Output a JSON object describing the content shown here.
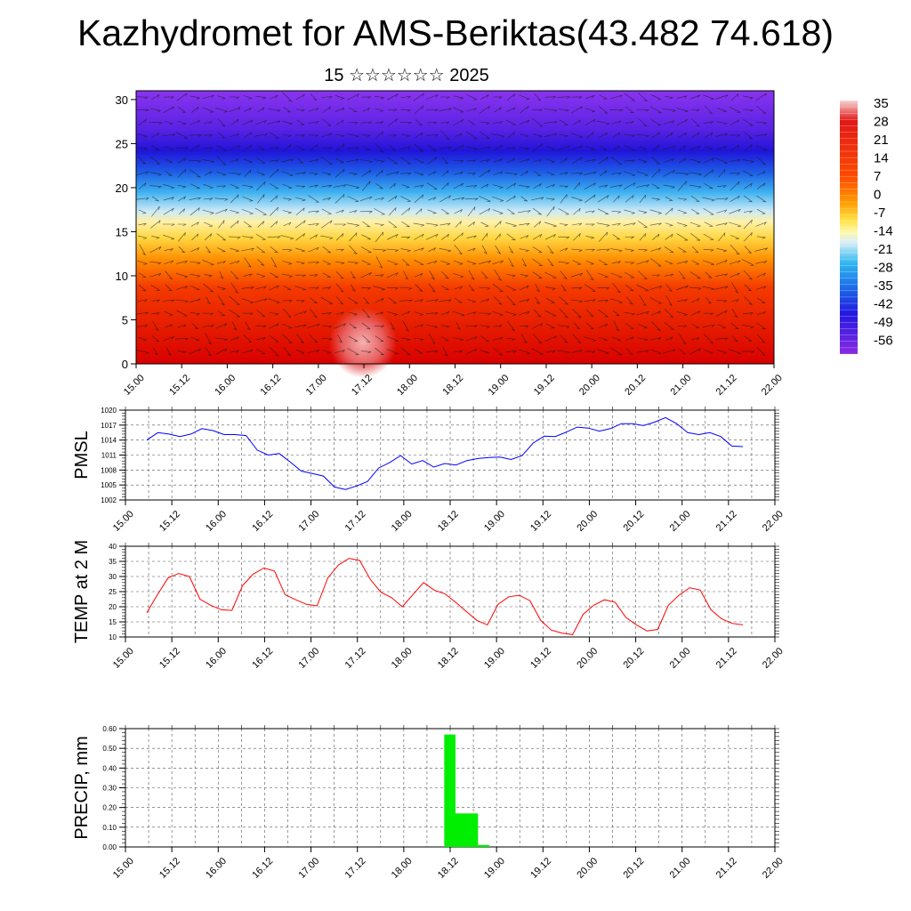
{
  "title": "Kazhydromet for AMS-Beriktas(43.482 74.618)",
  "subtitle": "15 ☆☆☆☆☆☆ 2025",
  "chart_data": [
    {
      "type": "heatmap",
      "xlabel": "",
      "ylabel": "",
      "x_ticks": [
        "15.00",
        "15.12",
        "16.00",
        "16.12",
        "17.00",
        "17.12",
        "18.00",
        "18.12",
        "19.00",
        "19.12",
        "20.00",
        "20.12",
        "21.00",
        "21.12",
        "22.00"
      ],
      "y_ticks": [
        "0",
        "5",
        "10",
        "15",
        "20",
        "25",
        "30"
      ],
      "ylim": [
        0,
        31
      ],
      "colorbar_labels": [
        "35",
        "28",
        "21",
        "14",
        "7",
        "0",
        "-7",
        "-14",
        "-21",
        "-28",
        "-35",
        "-42",
        "-49",
        "-56"
      ],
      "overlay": "wind vectors"
    },
    {
      "type": "line",
      "ylabel": "PMSL",
      "ylim": [
        1002,
        1020
      ],
      "y_ticks": [
        "1020",
        "1017",
        "1014",
        "1011",
        "1008",
        "1005",
        "1002"
      ],
      "x_ticks": [
        "15.00",
        "15.12",
        "16.00",
        "16.12",
        "17.00",
        "17.12",
        "18.00",
        "18.12",
        "19.00",
        "19.12",
        "20.00",
        "20.12",
        "21.00",
        "21.12",
        "22.00"
      ],
      "color": "#0000ff",
      "values": [
        1014,
        1015.5,
        1015.2,
        1014.7,
        1015.2,
        1016.3,
        1015.9,
        1015.1,
        1015.1,
        1014.9,
        1012,
        1011,
        1011.3,
        1009.6,
        1007.8,
        1007.3,
        1006.8,
        1004.6,
        1004.1,
        1004.8,
        1005.7,
        1008.4,
        1009.5,
        1010.9,
        1009.2,
        1009.9,
        1008.6,
        1009.3,
        1009,
        1009.9,
        1010.3,
        1010.5,
        1010.6,
        1010.1,
        1010.9,
        1013.4,
        1014.8,
        1014.7,
        1015.6,
        1016.6,
        1016.4,
        1015.8,
        1016.3,
        1017.3,
        1017.3,
        1016.9,
        1017.6,
        1018.5,
        1017.3,
        1015.5,
        1015.1,
        1015.5,
        1014.7,
        1012.8,
        1012.7
      ]
    },
    {
      "type": "line",
      "ylabel": "TEMP at 2 M",
      "ylim": [
        10,
        40
      ],
      "y_ticks": [
        "40",
        "35",
        "30",
        "25",
        "20",
        "15",
        "10"
      ],
      "x_ticks": [
        "15.00",
        "15.12",
        "16.00",
        "16.12",
        "17.00",
        "17.12",
        "18.00",
        "18.12",
        "19.00",
        "19.12",
        "20.00",
        "20.12",
        "21.00",
        "21.12",
        "22.00"
      ],
      "color": "#ff0000",
      "values": [
        18,
        24,
        29.5,
        31,
        30,
        22.5,
        20.5,
        19,
        18.8,
        27,
        30.8,
        32.8,
        31.8,
        24,
        22.3,
        20.8,
        20.3,
        29.5,
        33.8,
        36,
        35.3,
        29,
        24.8,
        23,
        20,
        24,
        28,
        25.5,
        24.3,
        21.5,
        18.5,
        15.5,
        14,
        20.8,
        23.3,
        23.8,
        22,
        15.5,
        12.3,
        11.3,
        10.8,
        17.5,
        20.5,
        22.3,
        21.5,
        16.5,
        14,
        12,
        12.5,
        20.5,
        23.8,
        26.3,
        25.5,
        19,
        16,
        14.5,
        14
      ]
    },
    {
      "type": "bar",
      "ylabel": "PRECIP, mm",
      "ylim": [
        0,
        0.6
      ],
      "y_ticks": [
        "0.60",
        "0.50",
        "0.40",
        "0.30",
        "0.20",
        "0.10",
        "0.00"
      ],
      "x_ticks": [
        "15.00",
        "15.12",
        "16.00",
        "16.12",
        "17.00",
        "17.12",
        "18.00",
        "18.12",
        "19.00",
        "19.12",
        "20.00",
        "20.12",
        "21.00",
        "21.12",
        "22.00"
      ],
      "color": "#00ee00",
      "bars": [
        {
          "start_hour": 81,
          "end_hour": 84,
          "value": 0.57
        },
        {
          "start_hour": 84,
          "end_hour": 90,
          "value": 0.17
        },
        {
          "start_hour": 90,
          "end_hour": 93,
          "value": 0.01
        }
      ]
    }
  ]
}
